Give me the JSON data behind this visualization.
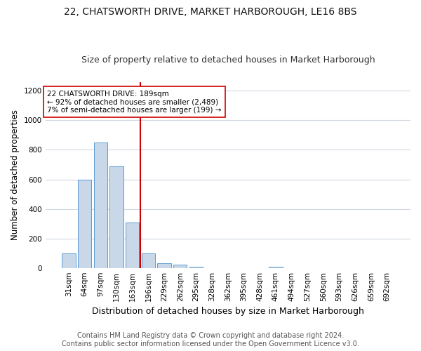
{
  "title": "22, CHATSWORTH DRIVE, MARKET HARBOROUGH, LE16 8BS",
  "subtitle": "Size of property relative to detached houses in Market Harborough",
  "xlabel": "Distribution of detached houses by size in Market Harborough",
  "ylabel": "Number of detached properties",
  "bar_values": [
    100,
    600,
    850,
    690,
    310,
    100,
    30,
    20,
    10,
    0,
    0,
    0,
    0,
    10,
    0,
    0,
    0,
    0,
    0,
    0,
    0
  ],
  "bin_labels": [
    "31sqm",
    "64sqm",
    "97sqm",
    "130sqm",
    "163sqm",
    "196sqm",
    "229sqm",
    "262sqm",
    "295sqm",
    "328sqm",
    "362sqm",
    "395sqm",
    "428sqm",
    "461sqm",
    "494sqm",
    "527sqm",
    "560sqm",
    "593sqm",
    "626sqm",
    "659sqm",
    "692sqm"
  ],
  "bar_color": "#c8d8e8",
  "bar_edgecolor": "#5b9bd5",
  "vline_x_index": 5,
  "vline_color": "#cc0000",
  "annotation_text": "22 CHATSWORTH DRIVE: 189sqm\n← 92% of detached houses are smaller (2,489)\n7% of semi-detached houses are larger (199) →",
  "annotation_box_edgecolor": "#cc0000",
  "annotation_box_facecolor": "#ffffff",
  "ylim": [
    0,
    1260
  ],
  "yticks": [
    0,
    200,
    400,
    600,
    800,
    1000,
    1200
  ],
  "footer_line1": "Contains HM Land Registry data © Crown copyright and database right 2024.",
  "footer_line2": "Contains public sector information licensed under the Open Government Licence v3.0.",
  "title_fontsize": 10,
  "subtitle_fontsize": 9,
  "xlabel_fontsize": 9,
  "ylabel_fontsize": 8.5,
  "tick_fontsize": 7.5,
  "annotation_fontsize": 7.5,
  "footer_fontsize": 7,
  "background_color": "#ffffff",
  "plot_background_color": "#ffffff",
  "grid_color": "#d0d8e0"
}
